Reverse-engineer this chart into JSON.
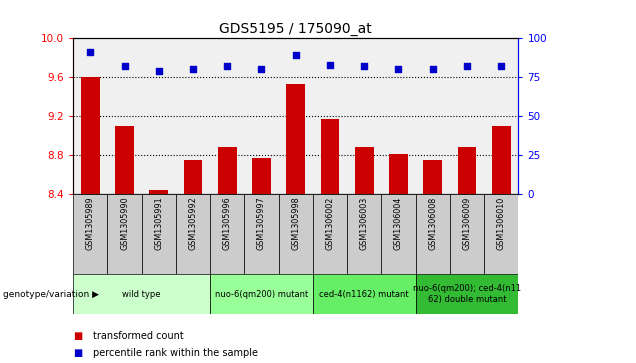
{
  "title": "GDS5195 / 175090_at",
  "samples": [
    "GSM1305989",
    "GSM1305990",
    "GSM1305991",
    "GSM1305992",
    "GSM1305996",
    "GSM1305997",
    "GSM1305998",
    "GSM1306002",
    "GSM1306003",
    "GSM1306004",
    "GSM1306008",
    "GSM1306009",
    "GSM1306010"
  ],
  "transformed_count": [
    9.6,
    9.1,
    8.44,
    8.75,
    8.88,
    8.77,
    9.53,
    9.17,
    8.88,
    8.81,
    8.75,
    8.88,
    9.1
  ],
  "percentile_rank": [
    91,
    82,
    79,
    80,
    82,
    80,
    89,
    83,
    82,
    80,
    80,
    82,
    82
  ],
  "ylim_left": [
    8.4,
    10.0
  ],
  "ylim_right": [
    0,
    100
  ],
  "yticks_left": [
    8.4,
    8.8,
    9.2,
    9.6,
    10.0
  ],
  "yticks_right": [
    0,
    25,
    50,
    75,
    100
  ],
  "groups": [
    {
      "label": "wild type",
      "start": 0,
      "end": 3
    },
    {
      "label": "nuo-6(qm200) mutant",
      "start": 4,
      "end": 6
    },
    {
      "label": "ced-4(n1162) mutant",
      "start": 7,
      "end": 9
    },
    {
      "label": "nuo-6(qm200); ced-4(n11\n62) double mutant",
      "start": 10,
      "end": 12
    }
  ],
  "group_colors": [
    "#ccffcc",
    "#99ff99",
    "#66ee66",
    "#33bb33"
  ],
  "bar_color": "#cc0000",
  "dot_color": "#0000cc",
  "background_color": "#f0f0f0",
  "sample_box_color": "#cccccc",
  "legend_items": [
    "transformed count",
    "percentile rank within the sample"
  ],
  "genotype_label": "genotype/variation"
}
